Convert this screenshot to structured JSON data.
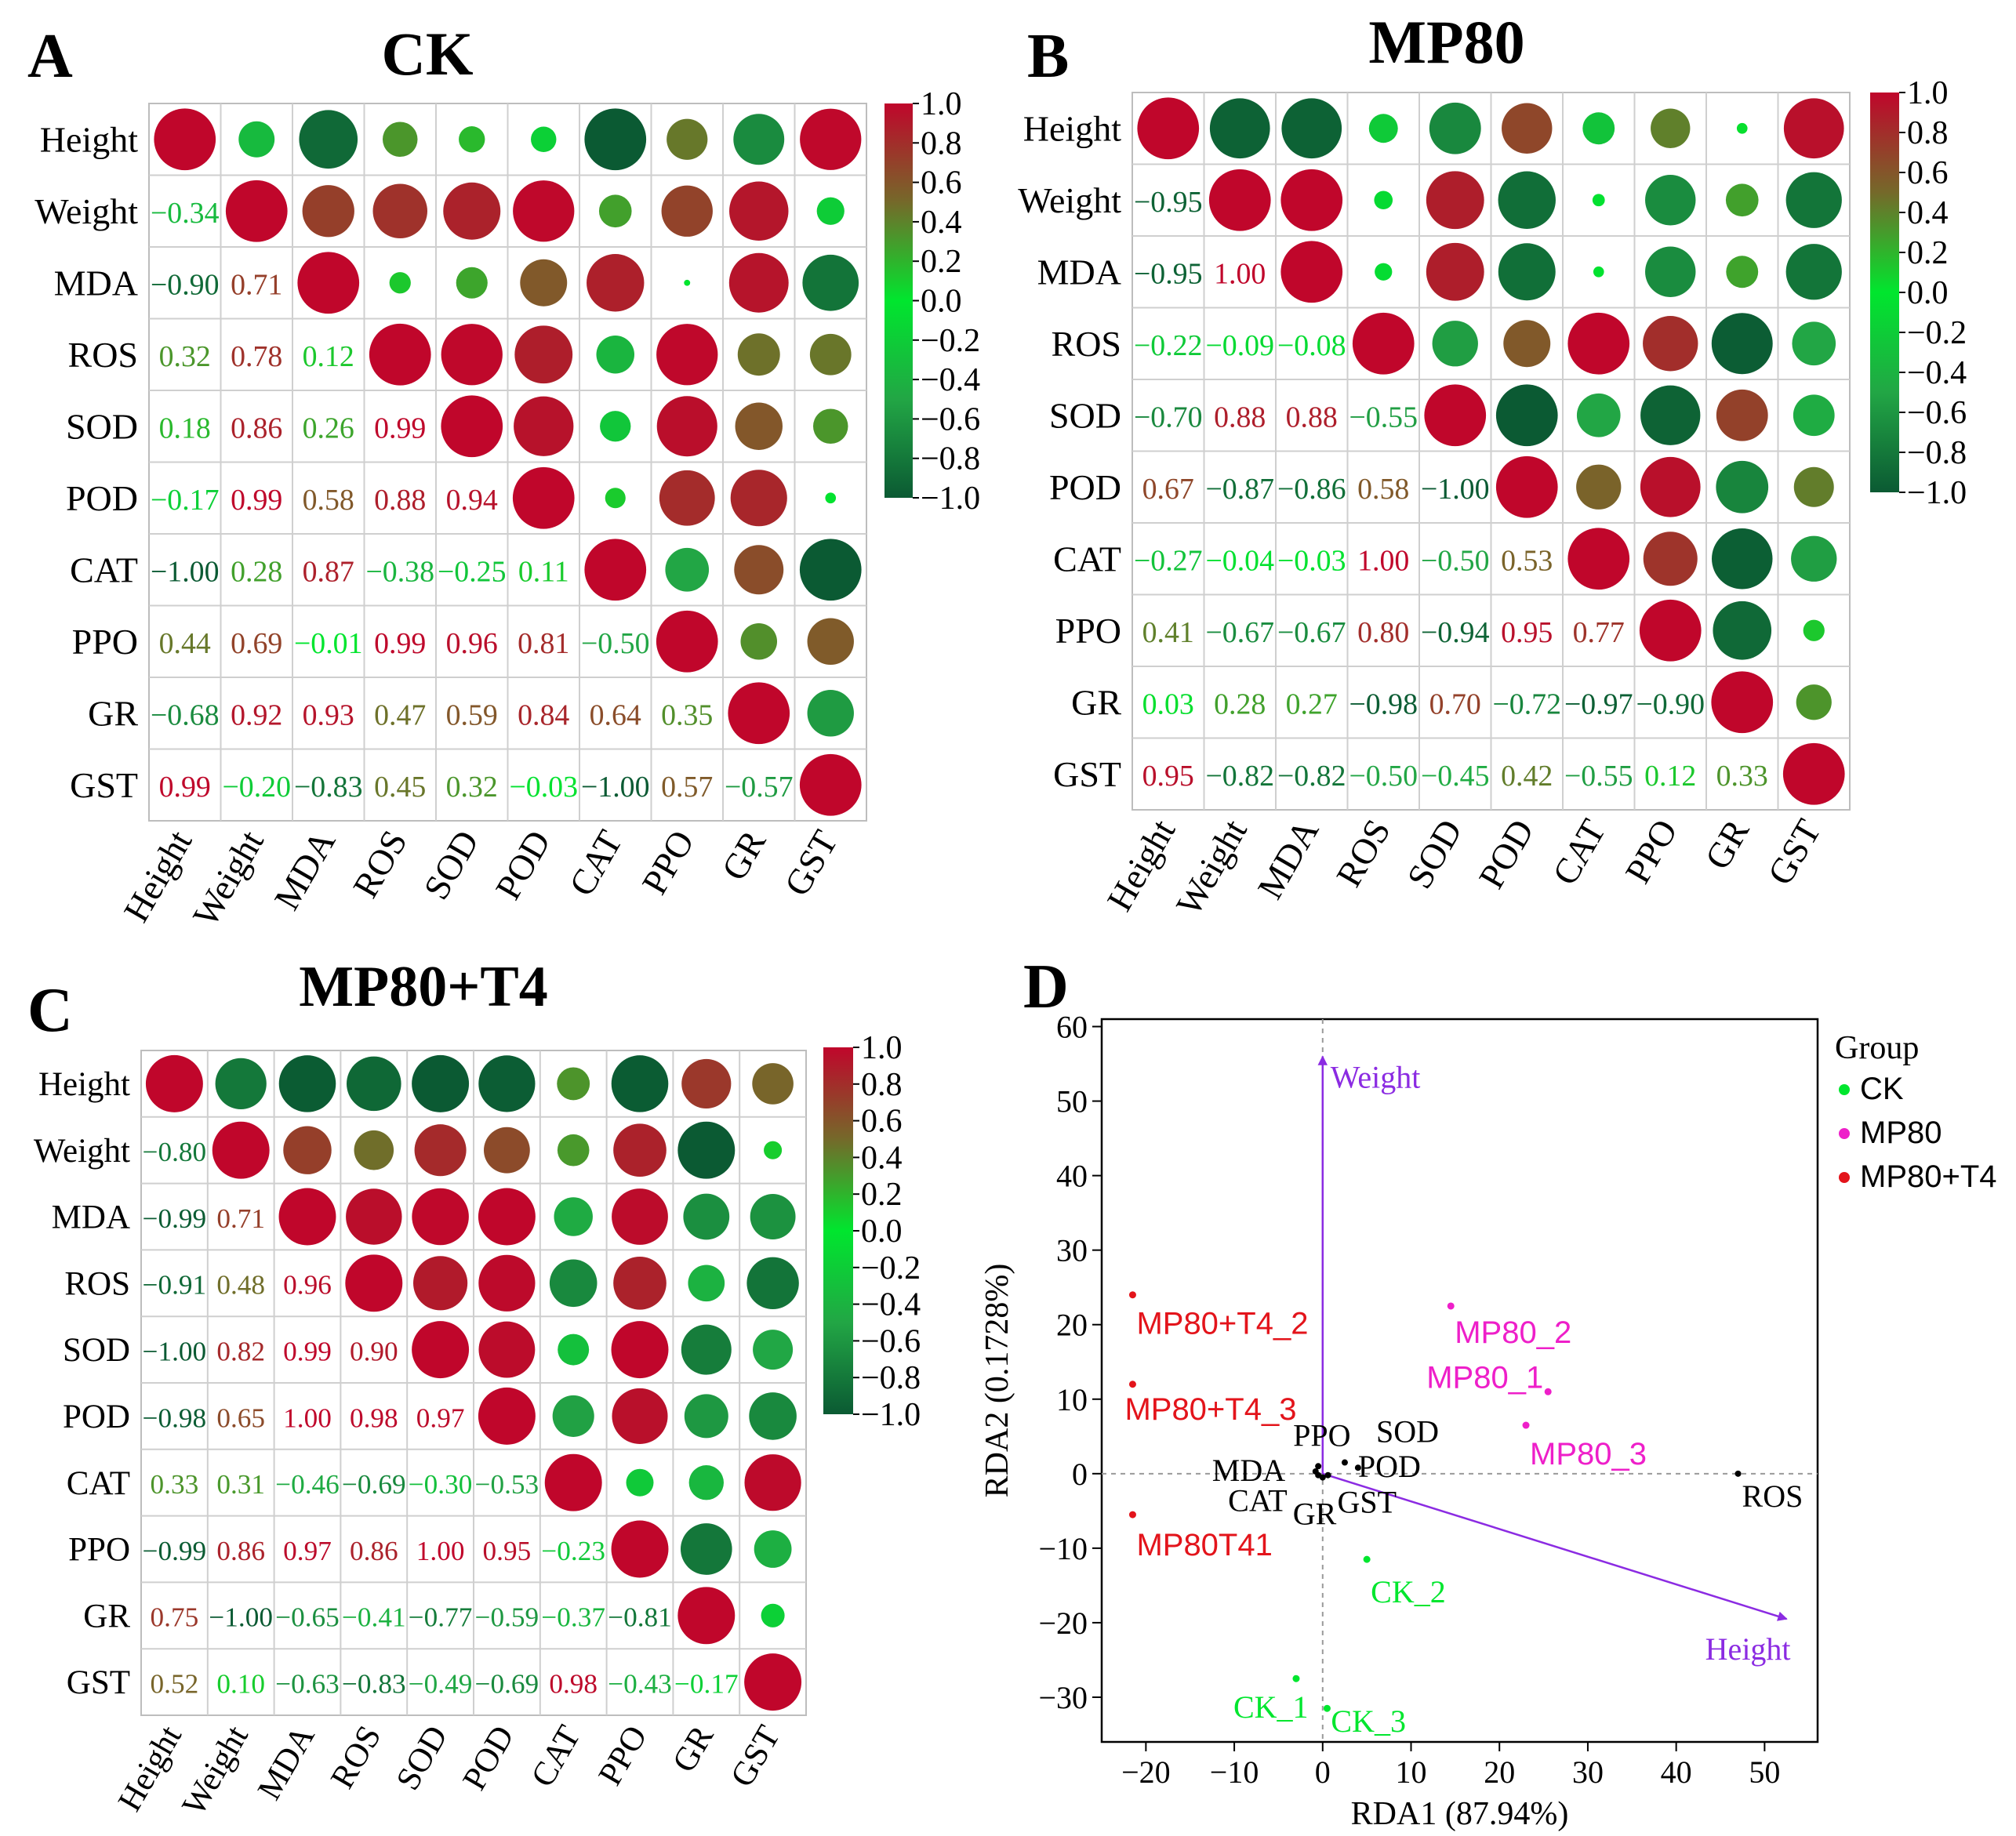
{
  "variables": [
    "Height",
    "Weight",
    "MDA",
    "ROS",
    "SOD",
    "POD",
    "CAT",
    "PPO",
    "GR",
    "GST"
  ],
  "colorbar_ticks": [
    "1.0",
    "0.8",
    "0.6",
    "0.4",
    "0.2",
    "0.0",
    "−0.2",
    "−0.4",
    "−0.6",
    "−0.8",
    "−1.0"
  ],
  "colors": {
    "negative": "#0b5a33",
    "mid_negative": "#22a645",
    "zero": "#00e62e",
    "mid_positive": "#75692a",
    "positive": "#c0062b",
    "arrow": "#8b2be2",
    "mp80": "#ee1fc9",
    "ck": "#00e62e",
    "mp80t4": "#e3141b"
  },
  "chart_data": [
    {
      "type": "heatmap",
      "panel_label": "A",
      "title": "CK",
      "matrix": [
        [
          1,
          -0.34,
          -0.9,
          0.32,
          0.18,
          -0.17,
          -1.0,
          0.44,
          -0.68,
          0.99
        ],
        [
          -0.34,
          1,
          0.71,
          0.78,
          0.86,
          0.99,
          0.28,
          0.69,
          0.92,
          -0.2
        ],
        [
          -0.9,
          0.71,
          1,
          0.12,
          0.26,
          0.58,
          0.87,
          -0.01,
          0.93,
          -0.83
        ],
        [
          0.32,
          0.78,
          0.12,
          1,
          0.99,
          0.88,
          -0.38,
          0.99,
          0.47,
          0.45
        ],
        [
          0.18,
          0.86,
          0.26,
          0.99,
          1,
          0.94,
          -0.25,
          0.96,
          0.59,
          0.32
        ],
        [
          -0.17,
          0.99,
          0.58,
          0.88,
          0.94,
          1,
          0.11,
          0.81,
          0.84,
          -0.03
        ],
        [
          -1.0,
          0.28,
          0.87,
          -0.38,
          -0.25,
          0.11,
          1,
          -0.5,
          0.64,
          -1.0
        ],
        [
          0.44,
          0.69,
          -0.01,
          0.99,
          0.96,
          0.81,
          -0.5,
          1,
          0.35,
          0.57
        ],
        [
          -0.68,
          0.92,
          0.93,
          0.47,
          0.59,
          0.84,
          0.64,
          0.35,
          1,
          -0.57
        ],
        [
          0.99,
          -0.2,
          -0.83,
          0.45,
          0.32,
          -0.03,
          -1.0,
          0.57,
          -0.57,
          1
        ]
      ],
      "colorbar_range": [
        -1.0,
        1.0
      ]
    },
    {
      "type": "heatmap",
      "panel_label": "B",
      "title": "MP80",
      "matrix": [
        [
          1,
          -0.95,
          -0.95,
          -0.22,
          -0.7,
          0.67,
          -0.27,
          0.41,
          0.03,
          0.95
        ],
        [
          -0.95,
          1,
          1.0,
          -0.09,
          0.88,
          -0.87,
          -0.04,
          -0.67,
          0.28,
          -0.82
        ],
        [
          -0.95,
          1.0,
          1,
          -0.08,
          0.88,
          -0.86,
          -0.03,
          -0.67,
          0.27,
          -0.82
        ],
        [
          -0.22,
          -0.09,
          -0.08,
          1,
          -0.55,
          0.58,
          1.0,
          0.8,
          -0.98,
          -0.5
        ],
        [
          -0.7,
          0.88,
          0.88,
          -0.55,
          1,
          -1.0,
          -0.5,
          -0.94,
          0.7,
          -0.45
        ],
        [
          0.67,
          -0.87,
          -0.86,
          0.58,
          -1.0,
          1,
          0.53,
          0.95,
          -0.72,
          0.42
        ],
        [
          -0.27,
          -0.04,
          -0.03,
          1.0,
          -0.5,
          0.53,
          1,
          0.77,
          -0.97,
          -0.55
        ],
        [
          0.41,
          -0.67,
          -0.67,
          0.8,
          -0.94,
          0.95,
          0.77,
          1,
          -0.9,
          0.12
        ],
        [
          0.03,
          0.28,
          0.27,
          -0.98,
          0.7,
          -0.72,
          -0.97,
          -0.9,
          1,
          0.33
        ],
        [
          0.95,
          -0.82,
          -0.82,
          -0.5,
          -0.45,
          0.42,
          -0.55,
          0.12,
          0.33,
          1
        ]
      ],
      "colorbar_range": [
        -1.0,
        1.0
      ]
    },
    {
      "type": "heatmap",
      "panel_label": "C",
      "title": "MP80+T4",
      "matrix": [
        [
          1,
          -0.8,
          -0.99,
          -0.91,
          -1.0,
          -0.98,
          0.33,
          -0.99,
          0.75,
          0.52
        ],
        [
          -0.8,
          1,
          0.71,
          0.48,
          0.82,
          0.65,
          0.31,
          0.86,
          -1.0,
          0.1
        ],
        [
          -0.99,
          0.71,
          1,
          0.96,
          0.99,
          1.0,
          -0.46,
          0.97,
          -0.65,
          -0.63
        ],
        [
          -0.91,
          0.48,
          0.96,
          1,
          0.9,
          0.98,
          -0.69,
          0.86,
          -0.41,
          -0.83
        ],
        [
          -1.0,
          0.82,
          0.99,
          0.9,
          1,
          0.97,
          -0.3,
          1.0,
          -0.77,
          -0.49
        ],
        [
          -0.98,
          0.65,
          1.0,
          0.98,
          0.97,
          1,
          -0.53,
          0.95,
          -0.59,
          -0.69
        ],
        [
          0.33,
          0.31,
          -0.46,
          -0.69,
          -0.3,
          -0.53,
          1,
          -0.23,
          -0.37,
          0.98
        ],
        [
          -0.99,
          0.86,
          0.97,
          0.86,
          1.0,
          0.95,
          -0.23,
          1,
          -0.81,
          -0.43
        ],
        [
          0.75,
          -1.0,
          -0.65,
          -0.41,
          -0.77,
          -0.59,
          -0.37,
          -0.81,
          1,
          -0.17
        ],
        [
          0.52,
          0.1,
          -0.63,
          -0.83,
          -0.49,
          -0.69,
          0.98,
          -0.43,
          -0.17,
          1
        ]
      ],
      "colorbar_range": [
        -1.0,
        1.0
      ]
    },
    {
      "type": "scatter",
      "panel_label": "D",
      "title": "",
      "xlabel": "RDA1 (87.94%)",
      "ylabel": "RDA2 (0.1728%)",
      "xlim": [
        -25,
        56
      ],
      "ylim": [
        -36,
        61
      ],
      "xticks": [
        -20,
        -10,
        0,
        10,
        20,
        30,
        40,
        50
      ],
      "xtick_labels": [
        "−20",
        "−10",
        "0",
        "10",
        "20",
        "30",
        "40",
        "50"
      ],
      "yticks": [
        -30,
        -20,
        -10,
        0,
        10,
        20,
        30,
        40,
        50,
        60
      ],
      "ytick_labels": [
        "−30",
        "−20",
        "−10",
        "0",
        "10",
        "20",
        "30",
        "40",
        "50",
        "60"
      ],
      "legend_title": "Group",
      "series": [
        {
          "name": "CK",
          "color": "#00e62e",
          "points": [
            {
              "x": -3,
              "y": -27.5,
              "label": "CK_1"
            },
            {
              "x": 5,
              "y": -11.5,
              "label": "CK_2"
            },
            {
              "x": 0.5,
              "y": -31.5,
              "label": "CK_3"
            }
          ]
        },
        {
          "name": "MP80",
          "color": "#ee1fc9",
          "points": [
            {
              "x": 25.5,
              "y": 11,
              "label": "MP80_1"
            },
            {
              "x": 14.5,
              "y": 22.5,
              "label": "MP80_2"
            },
            {
              "x": 23,
              "y": 6.5,
              "label": "MP80_3"
            }
          ]
        },
        {
          "name": "MP80+T4",
          "color": "#e3141b",
          "points": [
            {
              "x": -21.5,
              "y": -5.5,
              "label": "MP80T41"
            },
            {
              "x": -21.5,
              "y": 24,
              "label": "MP80+T4_2"
            },
            {
              "x": -21.5,
              "y": 12,
              "label": "MP80+T4_3"
            }
          ]
        }
      ],
      "species_points": [
        {
          "label": "ROS",
          "x": 47,
          "y": 0
        },
        {
          "label": "PPO",
          "x": -0.5,
          "y": 1
        },
        {
          "label": "SOD",
          "x": 2.5,
          "y": 1.5
        },
        {
          "label": "POD",
          "x": 4,
          "y": 0.8
        },
        {
          "label": "MDA",
          "x": -0.8,
          "y": 0.3
        },
        {
          "label": "CAT",
          "x": -0.5,
          "y": -0.2
        },
        {
          "label": "GR",
          "x": 0,
          "y": -0.5
        },
        {
          "label": "GST",
          "x": 0.6,
          "y": -0.2
        }
      ],
      "arrows": [
        {
          "label": "Weight",
          "x": 0,
          "y": 56
        },
        {
          "label": "Height",
          "x": 52.5,
          "y": -19.5
        }
      ]
    }
  ]
}
